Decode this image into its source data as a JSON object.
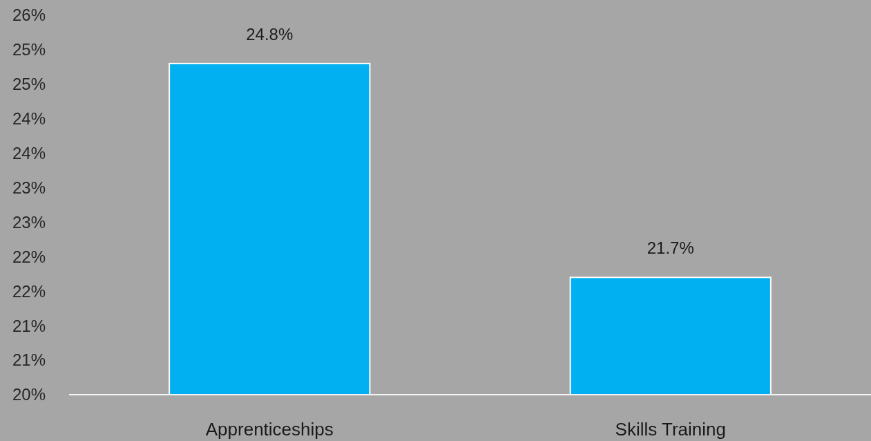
{
  "chart_data": {
    "type": "bar",
    "categories": [
      "Apprenticeships",
      "Skills Training"
    ],
    "values": [
      24.8,
      21.7
    ],
    "value_labels": [
      "24.8%",
      "21.7%"
    ],
    "color": "#00b0f0",
    "ylim": [
      20,
      25.5
    ],
    "yticks": [
      {
        "value": 20,
        "label": "20%"
      },
      {
        "value": 20.5,
        "label": "21%"
      },
      {
        "value": 21,
        "label": "21%"
      },
      {
        "value": 21.5,
        "label": "22%"
      },
      {
        "value": 22,
        "label": "22%"
      },
      {
        "value": 22.5,
        "label": "23%"
      },
      {
        "value": 23,
        "label": "23%"
      },
      {
        "value": 23.5,
        "label": "24%"
      },
      {
        "value": 24,
        "label": "24%"
      },
      {
        "value": 24.5,
        "label": "25%"
      },
      {
        "value": 25,
        "label": "25%"
      },
      {
        "value": 25.5,
        "label": "26%"
      }
    ],
    "grid": false
  }
}
